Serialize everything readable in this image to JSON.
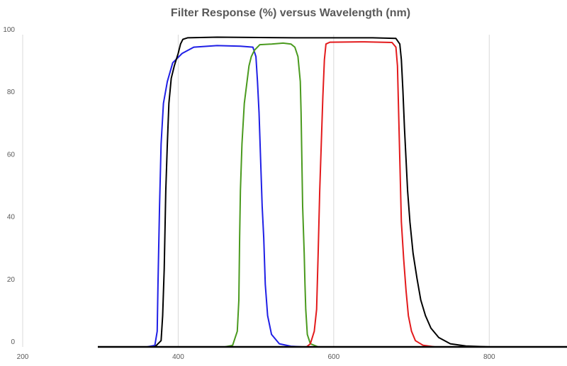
{
  "chart_data": {
    "type": "line",
    "title": "Filter Response (%) versus Wavelength (nm)",
    "xlabel": "",
    "ylabel": "",
    "xlim": [
      200,
      900
    ],
    "ylim": [
      0,
      100
    ],
    "x_ticks": [
      200,
      400,
      600,
      800
    ],
    "y_ticks": [
      0,
      20,
      40,
      60,
      80,
      100
    ],
    "grid": "vertical",
    "legend": "none",
    "series": [
      {
        "name": "Blue",
        "color": "#1f1fe6",
        "points": [
          [
            300,
            0
          ],
          [
            360,
            0
          ],
          [
            370,
            0.5
          ],
          [
            373,
            5
          ],
          [
            374,
            20
          ],
          [
            376,
            45
          ],
          [
            378,
            65
          ],
          [
            381,
            78
          ],
          [
            386,
            85
          ],
          [
            393,
            91
          ],
          [
            405,
            94
          ],
          [
            420,
            96
          ],
          [
            450,
            96.5
          ],
          [
            480,
            96.3
          ],
          [
            496,
            96
          ],
          [
            500,
            93
          ],
          [
            502,
            85
          ],
          [
            504,
            75
          ],
          [
            506,
            60
          ],
          [
            508,
            45
          ],
          [
            510,
            35
          ],
          [
            512,
            20
          ],
          [
            515,
            10
          ],
          [
            520,
            4
          ],
          [
            530,
            1
          ],
          [
            545,
            0.2
          ],
          [
            560,
            0
          ]
        ]
      },
      {
        "name": "Green",
        "color": "#4a9a1e",
        "points": [
          [
            300,
            0
          ],
          [
            460,
            0
          ],
          [
            470,
            0.5
          ],
          [
            476,
            5
          ],
          [
            478,
            15
          ],
          [
            479,
            35
          ],
          [
            480,
            50
          ],
          [
            482,
            65
          ],
          [
            485,
            78
          ],
          [
            488,
            84
          ],
          [
            491,
            90
          ],
          [
            494,
            93
          ],
          [
            498,
            95
          ],
          [
            505,
            96.8
          ],
          [
            520,
            97
          ],
          [
            535,
            97.3
          ],
          [
            545,
            97
          ],
          [
            550,
            96
          ],
          [
            554,
            93
          ],
          [
            557,
            85
          ],
          [
            558,
            75
          ],
          [
            559,
            60
          ],
          [
            560,
            45
          ],
          [
            562,
            30
          ],
          [
            563,
            20
          ],
          [
            564,
            12
          ],
          [
            566,
            4
          ],
          [
            570,
            1
          ],
          [
            580,
            0
          ]
        ]
      },
      {
        "name": "Red",
        "color": "#e31a1c",
        "points": [
          [
            550,
            0
          ],
          [
            565,
            0
          ],
          [
            570,
            1
          ],
          [
            575,
            5
          ],
          [
            578,
            12
          ],
          [
            580,
            30
          ],
          [
            582,
            50
          ],
          [
            584,
            65
          ],
          [
            586,
            80
          ],
          [
            588,
            92
          ],
          [
            590,
            97
          ],
          [
            595,
            97.6
          ],
          [
            640,
            97.7
          ],
          [
            675,
            97.5
          ],
          [
            680,
            96
          ],
          [
            682,
            90
          ],
          [
            683,
            80
          ],
          [
            684,
            70
          ],
          [
            685,
            60
          ],
          [
            686,
            50
          ],
          [
            687,
            40
          ],
          [
            690,
            28
          ],
          [
            693,
            18
          ],
          [
            696,
            10
          ],
          [
            700,
            5
          ],
          [
            705,
            2
          ],
          [
            715,
            0.5
          ],
          [
            730,
            0
          ]
        ]
      },
      {
        "name": "Black",
        "color": "#000000",
        "points": [
          [
            300,
            0
          ],
          [
            370,
            0
          ],
          [
            378,
            2
          ],
          [
            380,
            10
          ],
          [
            382,
            25
          ],
          [
            384,
            50
          ],
          [
            386,
            65
          ],
          [
            388,
            78
          ],
          [
            391,
            86
          ],
          [
            395,
            90
          ],
          [
            400,
            94
          ],
          [
            403,
            97
          ],
          [
            406,
            98.5
          ],
          [
            412,
            99
          ],
          [
            450,
            99.2
          ],
          [
            550,
            99
          ],
          [
            600,
            99
          ],
          [
            650,
            99
          ],
          [
            680,
            98.8
          ],
          [
            685,
            97
          ],
          [
            687,
            92
          ],
          [
            689,
            82
          ],
          [
            691,
            70
          ],
          [
            693,
            60
          ],
          [
            695,
            50
          ],
          [
            698,
            40
          ],
          [
            702,
            30
          ],
          [
            707,
            22
          ],
          [
            712,
            15
          ],
          [
            718,
            10
          ],
          [
            725,
            6
          ],
          [
            735,
            3
          ],
          [
            750,
            1
          ],
          [
            770,
            0.3
          ],
          [
            800,
            0
          ],
          [
            900,
            0
          ]
        ]
      }
    ]
  }
}
